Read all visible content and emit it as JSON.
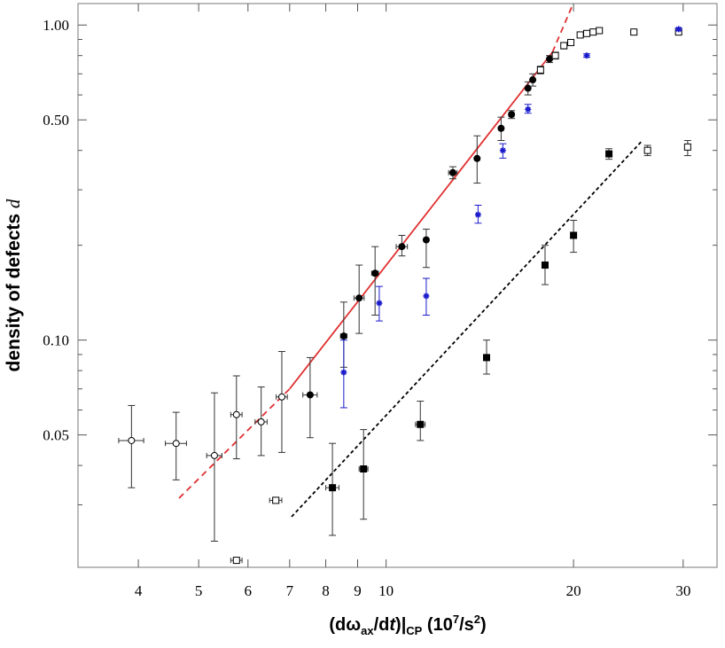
{
  "chart_data": {
    "type": "scatter",
    "x_scale": "log",
    "y_scale": "log",
    "xlim": [
      3.2,
      34
    ],
    "ylim": [
      0.019,
      1.17
    ],
    "xlabel_main": "(dω",
    "xlabel_sub1": "ax",
    "xlabel_mid": "/d",
    "xlabel_t": "t",
    "xlabel_close": ")|",
    "xlabel_sub2": "CP",
    "xlabel_unit": " (10",
    "xlabel_sup": "7",
    "xlabel_end": "/s",
    "xlabel_sup2": "2",
    "xlabel_paren": ")",
    "ylabel_text": "density of defects ",
    "ylabel_var": "d",
    "grid": false,
    "x_tick_labels": [
      {
        "value": 4,
        "label": "4"
      },
      {
        "value": 5,
        "label": "5"
      },
      {
        "value": 6,
        "label": "6"
      },
      {
        "value": 7,
        "label": "7"
      },
      {
        "value": 8,
        "label": "8"
      },
      {
        "value": 9,
        "label": "9"
      },
      {
        "value": 10,
        "label": "10"
      },
      {
        "value": 20,
        "label": "20"
      },
      {
        "value": 30,
        "label": "30"
      }
    ],
    "y_tick_labels": [
      {
        "value": 1.0,
        "label": "1.00"
      },
      {
        "value": 0.5,
        "label": "0.50"
      },
      {
        "value": 0.1,
        "label": "0.10"
      },
      {
        "value": 0.05,
        "label": "0.05"
      }
    ],
    "y_minor_ticks": [
      0.03,
      0.04,
      0.06,
      0.07,
      0.08,
      0.09,
      0.2,
      0.3,
      0.4,
      0.6,
      0.7,
      0.8,
      0.9
    ],
    "series": [
      {
        "marker": "open-circle",
        "color": "#000000",
        "points": [
          {
            "x": 3.9,
            "y": 0.048,
            "ylo": 0.034,
            "yhi": 0.062,
            "xerr": 0.18
          },
          {
            "x": 4.6,
            "y": 0.047,
            "ylo": 0.036,
            "yhi": 0.059,
            "xerr": 0.18
          },
          {
            "x": 5.3,
            "y": 0.043,
            "ylo": 0.023,
            "yhi": 0.068,
            "xerr": 0.15
          },
          {
            "x": 5.75,
            "y": 0.058,
            "ylo": 0.042,
            "yhi": 0.077,
            "xerr": 0.12
          },
          {
            "x": 6.3,
            "y": 0.055,
            "ylo": 0.043,
            "yhi": 0.071,
            "xerr": 0.14
          },
          {
            "x": 6.8,
            "y": 0.066,
            "ylo": 0.044,
            "yhi": 0.092,
            "xerr": 0.14
          }
        ]
      },
      {
        "marker": "filled-circle",
        "color": "#000000",
        "points": [
          {
            "x": 7.55,
            "y": 0.067,
            "ylo": 0.049,
            "yhi": 0.088,
            "xerr": 0.2
          },
          {
            "x": 8.55,
            "y": 0.103,
            "ylo": 0.082,
            "yhi": 0.132,
            "xerr": 0.1
          },
          {
            "x": 9.05,
            "y": 0.136,
            "ylo": 0.105,
            "yhi": 0.173,
            "xerr": 0.17
          },
          {
            "x": 9.6,
            "y": 0.163,
            "ylo": 0.12,
            "yhi": 0.198,
            "xerr": 0.12
          },
          {
            "x": 10.6,
            "y": 0.198,
            "ylo": 0.185,
            "yhi": 0.215,
            "xerr": 0.22
          },
          {
            "x": 11.6,
            "y": 0.208,
            "ylo": 0.17,
            "yhi": 0.225,
            "xerr": 0.1
          },
          {
            "x": 12.8,
            "y": 0.34,
            "ylo": 0.325,
            "yhi": 0.355,
            "xerr": 0.2
          },
          {
            "x": 14.0,
            "y": 0.377,
            "ylo": 0.315,
            "yhi": 0.445,
            "xerr": 0.1
          },
          {
            "x": 15.3,
            "y": 0.47,
            "ylo": 0.43,
            "yhi": 0.51,
            "xerr": 0.12
          },
          {
            "x": 15.9,
            "y": 0.52,
            "ylo": 0.505,
            "yhi": 0.535,
            "xerr": 0.15
          },
          {
            "x": 16.9,
            "y": 0.63,
            "ylo": 0.6,
            "yhi": 0.66,
            "xerr": 0.1
          },
          {
            "x": 17.2,
            "y": 0.67,
            "ylo": 0.64,
            "yhi": 0.7,
            "xerr": 0.1
          },
          {
            "x": 18.3,
            "y": 0.78,
            "ylo": 0.76,
            "yhi": 0.8,
            "xerr": 0.1
          }
        ]
      },
      {
        "marker": "open-square",
        "color": "#000000",
        "points": [
          {
            "x": 17.7,
            "y": 0.72,
            "ylo": 0.7,
            "yhi": 0.74,
            "xerr": 0.15
          },
          {
            "x": 18.7,
            "y": 0.8,
            "ylo": 0.78,
            "yhi": 0.82,
            "xerr": 0.12
          },
          {
            "x": 19.3,
            "y": 0.86,
            "ylo": 0.84,
            "yhi": 0.88,
            "xerr": 0.12
          },
          {
            "x": 19.8,
            "y": 0.88,
            "ylo": 0.87,
            "yhi": 0.89,
            "xerr": 0.15
          },
          {
            "x": 20.5,
            "y": 0.93,
            "ylo": 0.92,
            "yhi": 0.94,
            "xerr": 0.15
          },
          {
            "x": 21.0,
            "y": 0.94,
            "ylo": 0.93,
            "yhi": 0.95,
            "xerr": 0.15
          },
          {
            "x": 21.5,
            "y": 0.95,
            "ylo": 0.94,
            "yhi": 0.96,
            "xerr": 0.15
          },
          {
            "x": 22.0,
            "y": 0.96,
            "ylo": 0.95,
            "yhi": 0.97,
            "xerr": 0.15
          },
          {
            "x": 25.0,
            "y": 0.95,
            "ylo": 0.94,
            "yhi": 0.96,
            "xerr": 0.2
          },
          {
            "x": 29.5,
            "y": 0.95,
            "ylo": 0.94,
            "yhi": 0.96,
            "xerr": 0.25
          },
          {
            "x": 6.65,
            "y": 0.031,
            "ylo": 0.0305,
            "yhi": 0.0315,
            "xerr": 0.15
          },
          {
            "x": 5.75,
            "y": 0.02,
            "ylo": 0.0198,
            "yhi": 0.0202,
            "xerr": 0.12
          },
          {
            "x": 26.3,
            "y": 0.4,
            "ylo": 0.385,
            "yhi": 0.415,
            "xerr": 0.2
          },
          {
            "x": 30.5,
            "y": 0.41,
            "ylo": 0.385,
            "yhi": 0.43,
            "xerr": 0.25
          }
        ]
      },
      {
        "marker": "filled-square",
        "color": "#000000",
        "points": [
          {
            "x": 8.2,
            "y": 0.034,
            "ylo": 0.024,
            "yhi": 0.047,
            "xerr": 0.2
          },
          {
            "x": 9.2,
            "y": 0.039,
            "ylo": 0.027,
            "yhi": 0.052,
            "xerr": 0.15
          },
          {
            "x": 11.35,
            "y": 0.054,
            "ylo": 0.048,
            "yhi": 0.064,
            "xerr": 0.2
          },
          {
            "x": 14.5,
            "y": 0.088,
            "ylo": 0.078,
            "yhi": 0.1,
            "xerr": 0.1
          },
          {
            "x": 18.0,
            "y": 0.173,
            "ylo": 0.15,
            "yhi": 0.2,
            "xerr": 0.1
          },
          {
            "x": 20.0,
            "y": 0.215,
            "ylo": 0.19,
            "yhi": 0.24,
            "xerr": 0.1
          },
          {
            "x": 22.8,
            "y": 0.39,
            "ylo": 0.375,
            "yhi": 0.405,
            "xerr": 0.1
          }
        ]
      },
      {
        "marker": "blue-star",
        "color": "#1a1acc",
        "points": [
          {
            "x": 8.55,
            "y": 0.079,
            "ylo": 0.061,
            "yhi": 0.1,
            "xerr": 0.05
          },
          {
            "x": 9.75,
            "y": 0.131,
            "ylo": 0.115,
            "yhi": 0.148,
            "xerr": 0.05
          },
          {
            "x": 11.6,
            "y": 0.138,
            "ylo": 0.12,
            "yhi": 0.157,
            "xerr": 0.05
          },
          {
            "x": 14.05,
            "y": 0.25,
            "ylo": 0.235,
            "yhi": 0.268,
            "xerr": 0.05
          },
          {
            "x": 15.4,
            "y": 0.4,
            "ylo": 0.378,
            "yhi": 0.42,
            "xerr": 0.05
          },
          {
            "x": 16.9,
            "y": 0.54,
            "ylo": 0.525,
            "yhi": 0.56,
            "xerr": 0.05
          },
          {
            "x": 21.0,
            "y": 0.8,
            "ylo": 0.79,
            "yhi": 0.81,
            "xerr": 0.05
          },
          {
            "x": 29.5,
            "y": 0.97,
            "ylo": 0.96,
            "yhi": 0.98,
            "xerr": 0.05
          }
        ]
      }
    ],
    "fit_lines": [
      {
        "style": "solid",
        "color": "#e03030",
        "x1": 7.0,
        "y1": 0.07,
        "x2": 18.5,
        "y2": 0.82
      },
      {
        "style": "dashed",
        "color": "#e03030",
        "x1": 4.65,
        "y1": 0.0315,
        "x2": 7.0,
        "y2": 0.07
      },
      {
        "style": "dashed",
        "color": "#e03030",
        "x1": 18.5,
        "y1": 0.82,
        "x2": 19.9,
        "y2": 1.15
      },
      {
        "style": "dotted",
        "color": "#000000",
        "x1": 7.05,
        "y1": 0.0275,
        "x2": 25.8,
        "y2": 0.43
      }
    ]
  }
}
